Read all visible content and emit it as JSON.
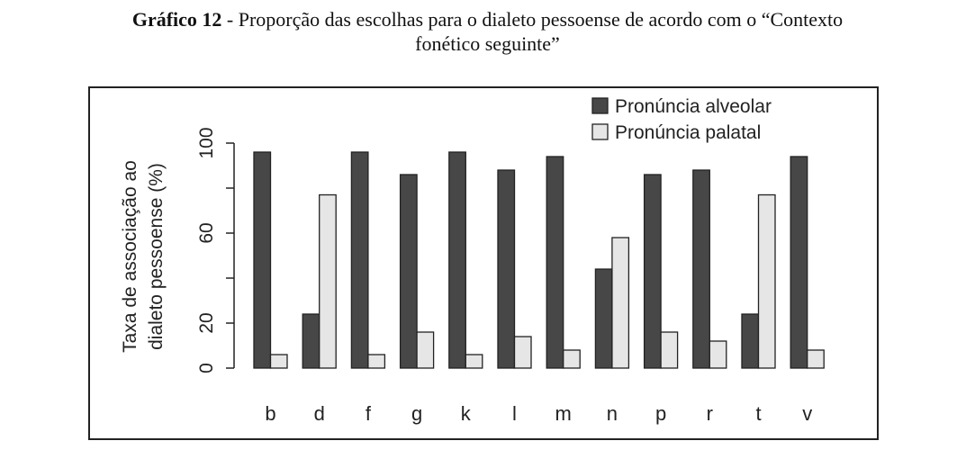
{
  "caption": {
    "label": "Gráfico 12",
    "separator": " - ",
    "text_line1": "Proporção das escolhas para o dialeto pessoense de acordo com o “Contexto",
    "text_line2": "fonético seguinte”"
  },
  "chart_data": {
    "type": "bar",
    "categories": [
      "b",
      "d",
      "f",
      "g",
      "k",
      "l",
      "m",
      "n",
      "p",
      "r",
      "t",
      "v"
    ],
    "series": [
      {
        "name": "Pronúncia alveolar",
        "color": "#474747",
        "values": [
          96,
          24,
          96,
          86,
          96,
          88,
          94,
          44,
          86,
          88,
          24,
          94
        ]
      },
      {
        "name": "Pronúncia palatal",
        "color": "#e6e6e6",
        "values": [
          6,
          77,
          6,
          16,
          6,
          14,
          8,
          58,
          16,
          12,
          77,
          8
        ]
      }
    ],
    "ylabel_line1": "Taxa de associação ao",
    "ylabel_line2": "dialeto pessoense  (%)",
    "xlabel": "",
    "ylim": [
      0,
      100
    ],
    "yticks": [
      0,
      20,
      60,
      100
    ],
    "legend_position": "top-right",
    "grid": false
  }
}
